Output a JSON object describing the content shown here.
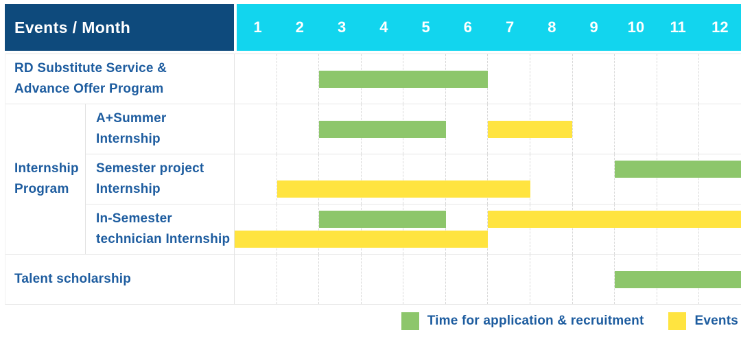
{
  "colors": {
    "navy_header": "#0e4a7c",
    "cyan_header": "#12d5ee",
    "green_bar": "#8dc66b",
    "yellow_bar": "#ffe440",
    "label_blue": "#1d5c9f"
  },
  "table": {
    "corner_label": "Events / Month",
    "months": [
      "1",
      "2",
      "3",
      "4",
      "5",
      "6",
      "7",
      "8",
      "9",
      "10",
      "11",
      "12"
    ],
    "group": {
      "label_lines": [
        "Internship",
        "Program"
      ],
      "row_start": 2,
      "row_end": 4
    },
    "rows": [
      {
        "label_lines": [
          "RD Substitute Service &",
          "Advance Offer Program"
        ],
        "in_group": false,
        "lanes": [
          [
            {
              "type": "application",
              "start_month": 3,
              "end_month": 6
            }
          ]
        ]
      },
      {
        "label_lines": [
          "A+Summer",
          "Internship"
        ],
        "in_group": true,
        "lanes": [
          [
            {
              "type": "application",
              "start_month": 3,
              "end_month": 5
            },
            {
              "type": "events",
              "start_month": 7,
              "end_month": 8
            }
          ]
        ]
      },
      {
        "label_lines": [
          "Semester project",
          "Internship"
        ],
        "in_group": true,
        "lanes": [
          [
            {
              "type": "application",
              "start_month": 10,
              "end_month": 12
            }
          ],
          [
            {
              "type": "events",
              "start_month": 2,
              "end_month": 7
            }
          ]
        ]
      },
      {
        "label_lines": [
          "In-Semester",
          "technician Internship"
        ],
        "in_group": true,
        "lanes": [
          [
            {
              "type": "application",
              "start_month": 3,
              "end_month": 5
            },
            {
              "type": "events",
              "start_month": 7,
              "end_month": 12
            }
          ],
          [
            {
              "type": "events",
              "start_month": 1,
              "end_month": 6
            }
          ]
        ]
      },
      {
        "label_lines": [
          "Talent scholarship"
        ],
        "in_group": false,
        "lanes": [
          [
            {
              "type": "application",
              "start_month": 10,
              "end_month": 12
            }
          ]
        ]
      }
    ]
  },
  "legend": [
    {
      "type": "application",
      "label": "Time for application & recruitment"
    },
    {
      "type": "events",
      "label": "Events"
    }
  ],
  "chart_data": {
    "type": "bar",
    "subtype": "gantt",
    "title": "Events / Month",
    "x_axis": {
      "label": "Month",
      "ticks": [
        1,
        2,
        3,
        4,
        5,
        6,
        7,
        8,
        9,
        10,
        11,
        12
      ],
      "range": [
        1,
        12
      ]
    },
    "grid": true,
    "legend_position": "bottom-right",
    "rows": [
      "RD Substitute Service & Advance Offer Program",
      "A+Summer Internship",
      "Semester project Internship",
      "In-Semester technician Internship",
      "Talent scholarship"
    ],
    "series": [
      {
        "name": "Time for application & recruitment",
        "color": "#8dc66b",
        "spans": [
          {
            "row": "RD Substitute Service & Advance Offer Program",
            "start_month": 3,
            "end_month": 6
          },
          {
            "row": "A+Summer Internship",
            "start_month": 3,
            "end_month": 5
          },
          {
            "row": "Semester project Internship",
            "start_month": 10,
            "end_month": 12
          },
          {
            "row": "In-Semester technician Internship",
            "start_month": 3,
            "end_month": 5
          },
          {
            "row": "Talent scholarship",
            "start_month": 10,
            "end_month": 12
          }
        ]
      },
      {
        "name": "Events",
        "color": "#ffe440",
        "spans": [
          {
            "row": "A+Summer Internship",
            "start_month": 7,
            "end_month": 8
          },
          {
            "row": "Semester project Internship",
            "start_month": 2,
            "end_month": 7
          },
          {
            "row": "In-Semester technician Internship",
            "start_month": 1,
            "end_month": 6
          },
          {
            "row": "In-Semester technician Internship",
            "start_month": 7,
            "end_month": 12
          }
        ]
      }
    ]
  }
}
